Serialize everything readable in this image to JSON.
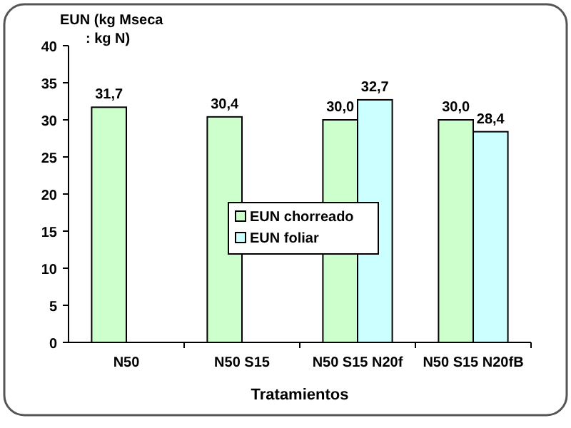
{
  "chart_data": {
    "type": "bar",
    "ylabel": "EUN (kg Mseca : kg N)",
    "xlabel": "Tratamientos",
    "categories": [
      "N50",
      "N50 S15",
      "N50 S15 N20f",
      "N50 S15 N20fB"
    ],
    "series": [
      {
        "name": "EUN chorreado",
        "color": "#ccffcc",
        "values": [
          31.7,
          30.4,
          30.0,
          30.0
        ],
        "value_labels": [
          "31,7",
          "30,4",
          "30,0",
          "30,0"
        ]
      },
      {
        "name": "EUN foliar",
        "color": "#ccffff",
        "values": [
          null,
          null,
          32.7,
          28.4
        ],
        "value_labels": [
          null,
          null,
          "32,7",
          "28,4"
        ]
      }
    ],
    "ylim": [
      0,
      40
    ],
    "yticks": [
      0,
      5,
      10,
      15,
      20,
      25,
      30,
      35,
      40
    ],
    "legend": "center"
  }
}
